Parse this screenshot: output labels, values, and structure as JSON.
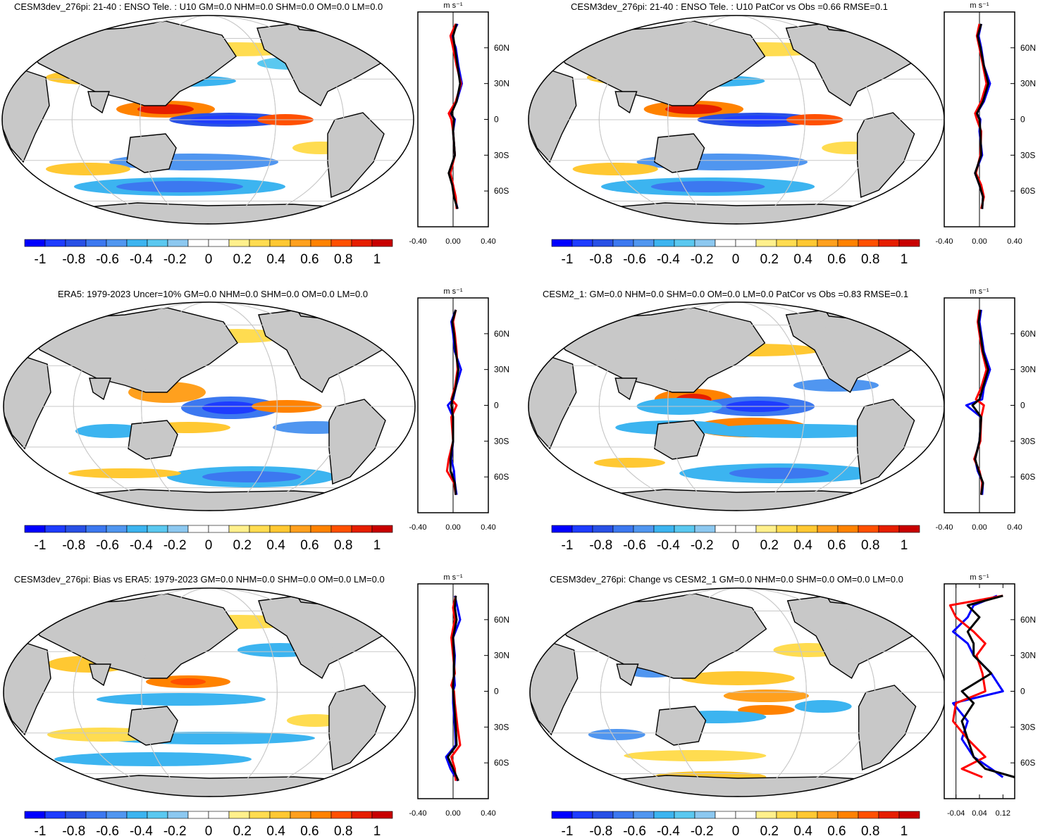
{
  "colors": {
    "levels": [
      "#0000ff",
      "#1e3cff",
      "#2850e6",
      "#3c78f0",
      "#5096f0",
      "#3cb4f0",
      "#5ac8f0",
      "#8cc8f0",
      "#ffffff",
      "#ffffff",
      "#fff08c",
      "#ffdc50",
      "#ffc832",
      "#ffa01e",
      "#ff8200",
      "#ff5000",
      "#e61e00",
      "#c80000"
    ],
    "land": "#c8c8c8",
    "profile_blue": "#0000ff",
    "profile_red": "#ff0000",
    "profile_black": "#000000"
  },
  "colorbar_labels": [
    "-1",
    "-0.8",
    "-0.6",
    "-0.4",
    "-0.2",
    "0",
    "0.2",
    "0.4",
    "0.6",
    "0.8",
    "1"
  ],
  "lat_labels": [
    "60N",
    "30N",
    "0",
    "30S",
    "60S"
  ],
  "profile_unit": "m s⁻¹",
  "chart_data": [
    {
      "type": "heatmap",
      "title": "CESM3dev_276pi: 21-40 : ENSO Tele. : U10 GM=0.0 NHM=0.0 SHM=0.0 OM=0.0 LM=0.0",
      "profile_ticks": [
        "-0.40",
        "0.00",
        "0.40"
      ],
      "profile_xlim": [
        -0.4,
        0.4
      ],
      "series": [
        {
          "name": "",
          "color": "blue",
          "lat": [
            80,
            70,
            60,
            45,
            30,
            15,
            5,
            0,
            -10,
            -30,
            -45,
            -55,
            -65,
            -75
          ],
          "values": [
            0.05,
            -0.02,
            0.03,
            0.06,
            0.1,
            0.04,
            -0.03,
            0.02,
            0.0,
            0.02,
            -0.04,
            0.0,
            0.02,
            0.05
          ]
        },
        {
          "name": "",
          "color": "red",
          "lat": [
            80,
            70,
            60,
            45,
            30,
            15,
            5,
            0,
            -10,
            -30,
            -45,
            -55,
            -65,
            -75
          ],
          "values": [
            0.03,
            -0.03,
            0.0,
            0.04,
            0.09,
            0.03,
            -0.05,
            -0.02,
            0.0,
            0.02,
            -0.03,
            0.0,
            0.03,
            0.04
          ]
        },
        {
          "name": "",
          "color": "black",
          "lat": [
            80,
            70,
            60,
            45,
            30,
            15,
            5,
            0,
            -10,
            -30,
            -45,
            -55,
            -65,
            -75
          ],
          "values": [
            0.04,
            0.0,
            0.02,
            0.05,
            0.08,
            0.04,
            -0.02,
            0.01,
            0.0,
            0.02,
            -0.05,
            -0.01,
            0.01,
            0.05
          ]
        }
      ]
    },
    {
      "type": "heatmap",
      "title": "CESM3dev_276pi: 21-40 : ENSO Tele. : U10 PatCor vs Obs =0.66 RMSE=0.1",
      "profile_ticks": [
        "-0.40",
        "0.00",
        "0.40"
      ],
      "profile_xlim": [
        -0.4,
        0.4
      ],
      "series": [
        {
          "name": "",
          "color": "blue",
          "lat": [
            80,
            70,
            60,
            45,
            30,
            15,
            5,
            0,
            -10,
            -30,
            -45,
            -55,
            -65,
            -75
          ],
          "values": [
            0.02,
            -0.01,
            0.02,
            0.05,
            0.12,
            0.05,
            -0.03,
            0.01,
            0.0,
            0.03,
            -0.05,
            0.0,
            0.04,
            0.03
          ]
        },
        {
          "name": "",
          "color": "red",
          "lat": [
            80,
            70,
            60,
            45,
            30,
            15,
            5,
            0,
            -10,
            -30,
            -45,
            -55,
            -65,
            -75
          ],
          "values": [
            0.0,
            -0.03,
            0.0,
            0.04,
            0.08,
            0.02,
            -0.05,
            -0.03,
            0.02,
            0.01,
            -0.04,
            0.02,
            0.05,
            0.02
          ]
        },
        {
          "name": "",
          "color": "black",
          "lat": [
            80,
            70,
            60,
            45,
            30,
            15,
            5,
            0,
            -10,
            -30,
            -45,
            -55,
            -65,
            -75
          ],
          "values": [
            0.02,
            -0.02,
            0.01,
            0.05,
            0.1,
            0.04,
            -0.03,
            0.0,
            0.01,
            0.02,
            -0.05,
            0.0,
            0.04,
            0.03
          ]
        }
      ]
    },
    {
      "type": "heatmap",
      "title": "ERA5: 1979-2023 Uncer=10% GM=0.0 NHM=0.0 SHM=0.0 OM=0.0 LM=0.0",
      "profile_ticks": [
        "-0.40",
        "0.00",
        "0.40"
      ],
      "profile_xlim": [
        -0.4,
        0.4
      ],
      "series": [
        {
          "name": "",
          "color": "blue",
          "lat": [
            80,
            70,
            60,
            45,
            30,
            15,
            5,
            0,
            -10,
            -30,
            -45,
            -55,
            -65,
            -75
          ],
          "values": [
            0.03,
            -0.02,
            0.0,
            0.02,
            0.09,
            0.03,
            0.0,
            -0.06,
            0.0,
            0.0,
            -0.02,
            0.01,
            0.02,
            0.04
          ]
        },
        {
          "name": "",
          "color": "red",
          "lat": [
            80,
            70,
            60,
            45,
            30,
            15,
            5,
            0,
            -10,
            -30,
            -45,
            -55,
            -65,
            -75
          ],
          "values": [
            0.03,
            0.0,
            0.02,
            0.04,
            0.05,
            0.02,
            -0.02,
            0.04,
            -0.02,
            0.0,
            -0.05,
            -0.07,
            0.01,
            0.03
          ]
        },
        {
          "name": "",
          "color": "black",
          "lat": [
            80,
            70,
            60,
            45,
            30,
            15,
            5,
            0,
            -10,
            -30,
            -45,
            -55,
            -65,
            -75
          ],
          "values": [
            0.03,
            -0.01,
            0.01,
            0.03,
            0.06,
            0.03,
            -0.01,
            -0.02,
            0.0,
            0.0,
            -0.03,
            -0.03,
            0.02,
            0.03
          ]
        }
      ]
    },
    {
      "type": "heatmap",
      "title": "CESM2_1: GM=0.0 NHM=0.0 SHM=0.0 OM=0.0 LM=0.0 PatCor vs Obs =0.83 RMSE=0.1",
      "profile_ticks": [
        "-0.40",
        "0.00",
        "0.40"
      ],
      "profile_xlim": [
        -0.4,
        0.4
      ],
      "series": [
        {
          "name": "",
          "color": "blue",
          "lat": [
            80,
            70,
            60,
            45,
            30,
            15,
            5,
            0,
            -10,
            -30,
            -45,
            -55,
            -65,
            -75
          ],
          "values": [
            0.02,
            0.0,
            0.02,
            0.05,
            0.12,
            0.05,
            0.03,
            -0.15,
            0.02,
            0.0,
            -0.05,
            -0.02,
            0.04,
            0.03
          ]
        },
        {
          "name": "",
          "color": "red",
          "lat": [
            80,
            70,
            60,
            45,
            30,
            15,
            5,
            0,
            -10,
            -30,
            -45,
            -55,
            -65,
            -75
          ],
          "values": [
            0.0,
            -0.02,
            0.0,
            0.03,
            0.08,
            0.02,
            -0.04,
            0.05,
            0.02,
            0.01,
            -0.06,
            0.0,
            0.03,
            0.02
          ]
        },
        {
          "name": "",
          "color": "black",
          "lat": [
            80,
            70,
            60,
            45,
            30,
            15,
            5,
            0,
            -10,
            -30,
            -45,
            -55,
            -65,
            -75
          ],
          "values": [
            0.01,
            -0.01,
            0.01,
            0.04,
            0.1,
            0.04,
            0.0,
            -0.08,
            0.02,
            0.0,
            -0.05,
            -0.01,
            0.04,
            0.02
          ]
        }
      ]
    },
    {
      "type": "heatmap",
      "title": "CESM3dev_276pi: Bias vs ERA5: 1979-2023 GM=0.0 NHM=0.0 SHM=0.0 OM=0.0 LM=0.0",
      "profile_ticks": [
        "-0.40",
        "0.00",
        "0.40"
      ],
      "profile_xlim": [
        -0.4,
        0.4
      ],
      "series": [
        {
          "name": "",
          "color": "blue",
          "lat": [
            80,
            70,
            60,
            45,
            30,
            15,
            5,
            0,
            -10,
            -30,
            -45,
            -55,
            -65,
            -75
          ],
          "values": [
            0.02,
            0.05,
            0.08,
            0.0,
            0.02,
            0.01,
            0.02,
            0.0,
            0.0,
            0.02,
            0.03,
            -0.08,
            -0.03,
            0.05
          ]
        },
        {
          "name": "",
          "color": "red",
          "lat": [
            80,
            70,
            60,
            45,
            30,
            15,
            5,
            0,
            -10,
            -30,
            -45,
            -55,
            -65,
            -75
          ],
          "values": [
            0.03,
            0.0,
            0.02,
            -0.02,
            0.0,
            0.02,
            -0.02,
            0.01,
            0.02,
            0.05,
            0.08,
            -0.02,
            0.02,
            0.03
          ]
        },
        {
          "name": "",
          "color": "black",
          "lat": [
            80,
            70,
            60,
            45,
            30,
            15,
            5,
            0,
            -10,
            -30,
            -45,
            -55,
            -65,
            -75
          ],
          "values": [
            0.03,
            0.02,
            0.04,
            0.0,
            0.01,
            0.01,
            0.0,
            0.0,
            0.01,
            0.03,
            0.04,
            -0.06,
            0.0,
            0.06
          ]
        }
      ]
    },
    {
      "type": "heatmap",
      "title": "CESM3dev_276pi: Change vs CESM2_1 GM=0.0 NHM=0.0 SHM=0.0 OM=0.0 LM=0.0",
      "profile_ticks": [
        "-0.04",
        "0.04",
        "0.12"
      ],
      "profile_xlim": [
        -0.08,
        0.16
      ],
      "series": [
        {
          "name": "",
          "color": "blue",
          "lat": [
            80,
            72,
            62,
            50,
            40,
            30,
            15,
            0,
            -10,
            -25,
            -40,
            -55,
            -65,
            -72
          ],
          "values": [
            0.1,
            0.02,
            0.0,
            -0.05,
            0.0,
            0.02,
            0.08,
            0.12,
            -0.05,
            0.0,
            -0.02,
            0.02,
            0.08,
            0.12
          ]
        },
        {
          "name": "",
          "color": "red",
          "lat": [
            80,
            72,
            62,
            50,
            40,
            30,
            15,
            0,
            -10,
            -25,
            -40,
            -55,
            -65,
            -72
          ],
          "values": [
            0.12,
            -0.06,
            -0.04,
            0.02,
            0.06,
            0.03,
            0.05,
            0.06,
            -0.04,
            -0.05,
            0.0,
            0.06,
            -0.02,
            0.05
          ]
        },
        {
          "name": "",
          "color": "black",
          "lat": [
            80,
            72,
            62,
            50,
            40,
            30,
            15,
            0,
            -10,
            -25,
            -40,
            -55,
            -65,
            -72
          ],
          "values": [
            0.12,
            0.0,
            0.04,
            0.0,
            0.02,
            0.02,
            0.08,
            -0.02,
            0.02,
            -0.02,
            0.0,
            0.02,
            0.06,
            0.16
          ]
        }
      ]
    }
  ]
}
